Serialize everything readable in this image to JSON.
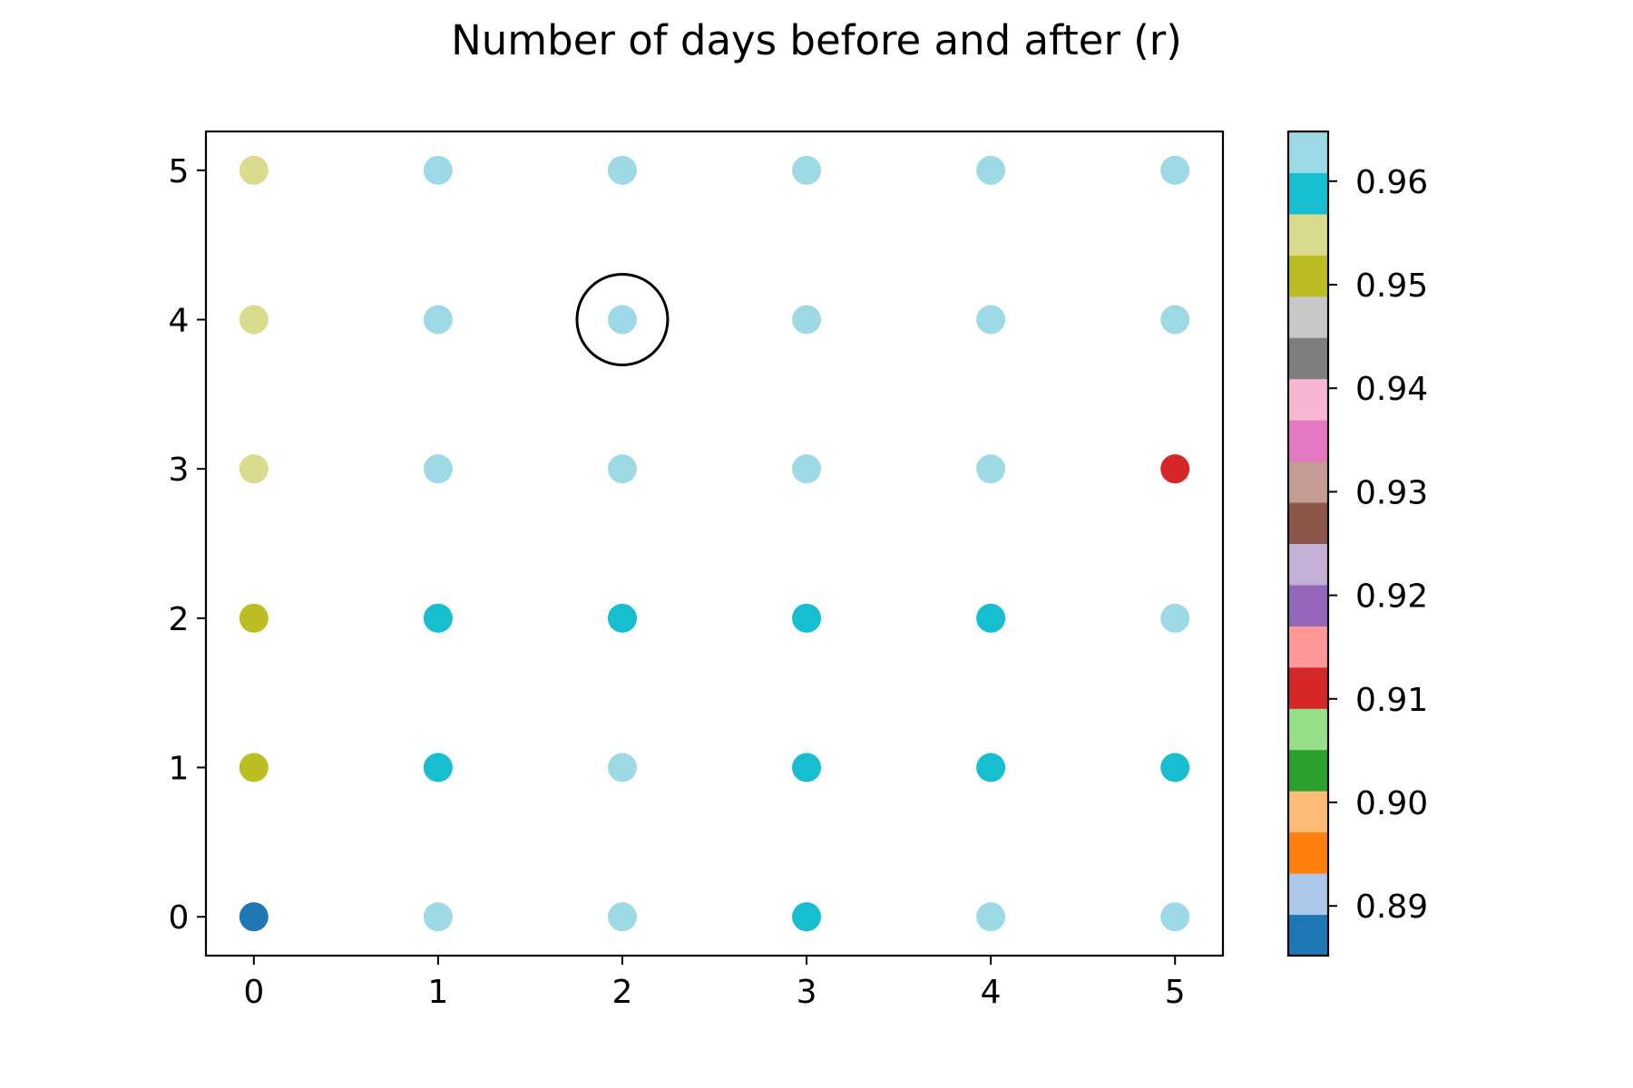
{
  "chart_data": {
    "type": "scatter",
    "title": "Number of days before and after (r)",
    "xlabel": "",
    "ylabel": "",
    "x_ticks": [
      0,
      1,
      2,
      3,
      4,
      5
    ],
    "y_ticks": [
      0,
      1,
      2,
      3,
      4,
      5
    ],
    "xlim": [
      -0.26,
      5.26
    ],
    "ylim": [
      -0.26,
      5.26
    ],
    "grid": false,
    "colormap": "tab20",
    "colorbar": {
      "range": [
        0.8852,
        0.9648
      ],
      "tick_values": [
        0.89,
        0.9,
        0.91,
        0.92,
        0.93,
        0.94,
        0.95,
        0.96
      ],
      "tick_labels": [
        "0.89",
        "0.90",
        "0.91",
        "0.92",
        "0.93",
        "0.94",
        "0.95",
        "0.96"
      ],
      "colors": [
        "#1f77b4",
        "#aec7e8",
        "#ff7f0e",
        "#ffbb78",
        "#2ca02c",
        "#98df8a",
        "#d62728",
        "#ff9896",
        "#9467bd",
        "#c5b0d5",
        "#8c564b",
        "#c49c94",
        "#e377c2",
        "#f7b6d2",
        "#7f7f7f",
        "#c7c7c7",
        "#bcbd22",
        "#dbdb8d",
        "#17becf",
        "#9edae5"
      ]
    },
    "points": [
      {
        "x": 0,
        "y": 0,
        "value": 0.887,
        "color": "#1f77b4"
      },
      {
        "x": 1,
        "y": 0,
        "value": 0.963,
        "color": "#9edae5"
      },
      {
        "x": 2,
        "y": 0,
        "value": 0.963,
        "color": "#9edae5"
      },
      {
        "x": 3,
        "y": 0,
        "value": 0.959,
        "color": "#17becf"
      },
      {
        "x": 4,
        "y": 0,
        "value": 0.963,
        "color": "#9edae5"
      },
      {
        "x": 5,
        "y": 0,
        "value": 0.963,
        "color": "#9edae5"
      },
      {
        "x": 0,
        "y": 1,
        "value": 0.951,
        "color": "#bcbd22"
      },
      {
        "x": 1,
        "y": 1,
        "value": 0.959,
        "color": "#17becf"
      },
      {
        "x": 2,
        "y": 1,
        "value": 0.963,
        "color": "#9edae5"
      },
      {
        "x": 3,
        "y": 1,
        "value": 0.959,
        "color": "#17becf"
      },
      {
        "x": 4,
        "y": 1,
        "value": 0.959,
        "color": "#17becf"
      },
      {
        "x": 5,
        "y": 1,
        "value": 0.959,
        "color": "#17becf"
      },
      {
        "x": 0,
        "y": 2,
        "value": 0.951,
        "color": "#bcbd22"
      },
      {
        "x": 1,
        "y": 2,
        "value": 0.959,
        "color": "#17becf"
      },
      {
        "x": 2,
        "y": 2,
        "value": 0.959,
        "color": "#17becf"
      },
      {
        "x": 3,
        "y": 2,
        "value": 0.959,
        "color": "#17becf"
      },
      {
        "x": 4,
        "y": 2,
        "value": 0.959,
        "color": "#17becf"
      },
      {
        "x": 5,
        "y": 2,
        "value": 0.963,
        "color": "#9edae5"
      },
      {
        "x": 0,
        "y": 3,
        "value": 0.955,
        "color": "#dbdb8d"
      },
      {
        "x": 1,
        "y": 3,
        "value": 0.963,
        "color": "#9edae5"
      },
      {
        "x": 2,
        "y": 3,
        "value": 0.963,
        "color": "#9edae5"
      },
      {
        "x": 3,
        "y": 3,
        "value": 0.963,
        "color": "#9edae5"
      },
      {
        "x": 4,
        "y": 3,
        "value": 0.963,
        "color": "#9edae5"
      },
      {
        "x": 5,
        "y": 3,
        "value": 0.911,
        "color": "#d62728"
      },
      {
        "x": 0,
        "y": 4,
        "value": 0.955,
        "color": "#dbdb8d"
      },
      {
        "x": 1,
        "y": 4,
        "value": 0.963,
        "color": "#9edae5"
      },
      {
        "x": 2,
        "y": 4,
        "value": 0.963,
        "color": "#9edae5"
      },
      {
        "x": 3,
        "y": 4,
        "value": 0.963,
        "color": "#9edae5"
      },
      {
        "x": 4,
        "y": 4,
        "value": 0.963,
        "color": "#9edae5"
      },
      {
        "x": 5,
        "y": 4,
        "value": 0.963,
        "color": "#9edae5"
      },
      {
        "x": 0,
        "y": 5,
        "value": 0.955,
        "color": "#dbdb8d"
      },
      {
        "x": 1,
        "y": 5,
        "value": 0.963,
        "color": "#9edae5"
      },
      {
        "x": 2,
        "y": 5,
        "value": 0.963,
        "color": "#9edae5"
      },
      {
        "x": 3,
        "y": 5,
        "value": 0.963,
        "color": "#9edae5"
      },
      {
        "x": 4,
        "y": 5,
        "value": 0.963,
        "color": "#9edae5"
      },
      {
        "x": 5,
        "y": 5,
        "value": 0.963,
        "color": "#9edae5"
      }
    ],
    "highlight": {
      "x": 2,
      "y": 4,
      "marker": "open-circle"
    }
  }
}
